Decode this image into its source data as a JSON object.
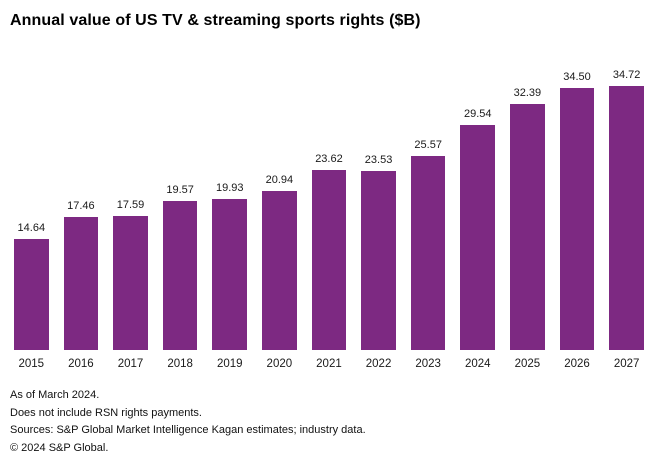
{
  "chart_data": {
    "type": "bar",
    "title": "Annual value of US TV & streaming sports rights ($B)",
    "categories": [
      "2015",
      "2016",
      "2017",
      "2018",
      "2019",
      "2020",
      "2021",
      "2022",
      "2023",
      "2024",
      "2025",
      "2026",
      "2027"
    ],
    "values": [
      14.64,
      17.46,
      17.59,
      19.57,
      19.93,
      20.94,
      23.62,
      23.53,
      25.57,
      29.54,
      32.39,
      34.5,
      34.72
    ],
    "xlabel": "",
    "ylabel": "",
    "ylim": [
      0,
      38
    ],
    "grid": false,
    "legend": false,
    "value_labels": "above bars, 2 decimal places",
    "bar_color": "#7d2982"
  },
  "footnotes": [
    "As of March 2024.",
    "Does not include RSN rights payments.",
    "Sources: S&P Global Market Intelligence Kagan estimates; industry data.",
    "© 2024 S&P Global."
  ]
}
